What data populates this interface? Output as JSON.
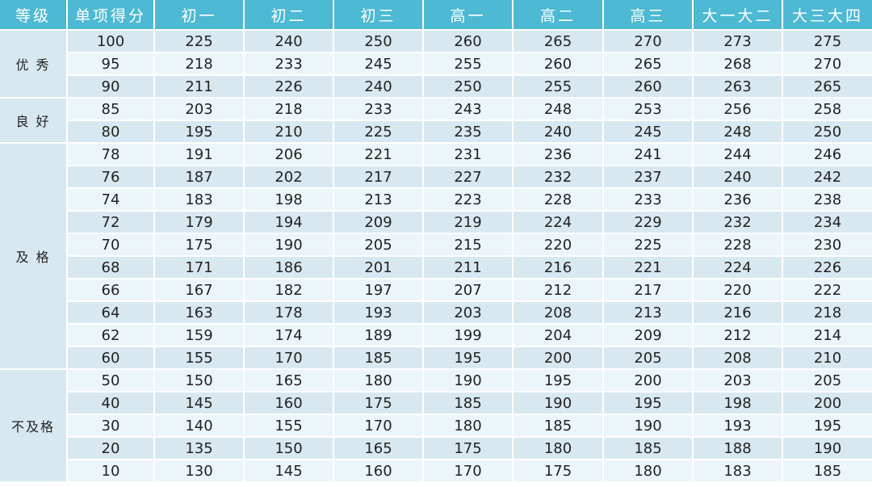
{
  "headers": [
    "等级",
    "单项得分",
    "初一",
    "初二",
    "初三",
    "高一",
    "高二",
    "高三",
    "大一大二",
    "大三大四"
  ],
  "groups": [
    {
      "grade": "优 秀",
      "rows": [
        [
          "100",
          225,
          240,
          250,
          260,
          265,
          270,
          273,
          275
        ],
        [
          "95",
          218,
          233,
          245,
          255,
          260,
          265,
          268,
          270
        ],
        [
          "90",
          211,
          226,
          240,
          250,
          255,
          260,
          263,
          265
        ]
      ]
    },
    {
      "grade": "良 好",
      "rows": [
        [
          "85",
          203,
          218,
          233,
          243,
          248,
          253,
          256,
          258
        ],
        [
          "80",
          195,
          210,
          225,
          235,
          240,
          245,
          248,
          250
        ]
      ]
    },
    {
      "grade": "及 格",
      "rows": [
        [
          "78",
          191,
          206,
          221,
          231,
          236,
          241,
          244,
          246
        ],
        [
          "76",
          187,
          202,
          217,
          227,
          232,
          237,
          240,
          242
        ],
        [
          "74",
          183,
          198,
          213,
          223,
          228,
          233,
          236,
          238
        ],
        [
          "72",
          179,
          194,
          209,
          219,
          224,
          229,
          232,
          234
        ],
        [
          "70",
          175,
          190,
          205,
          215,
          220,
          225,
          228,
          230
        ],
        [
          "68",
          171,
          186,
          201,
          211,
          216,
          221,
          224,
          226
        ],
        [
          "66",
          167,
          182,
          197,
          207,
          212,
          217,
          220,
          222
        ],
        [
          "64",
          163,
          178,
          193,
          203,
          208,
          213,
          216,
          218
        ],
        [
          "62",
          159,
          174,
          189,
          199,
          204,
          209,
          212,
          214
        ],
        [
          "60",
          155,
          170,
          185,
          195,
          200,
          205,
          208,
          210
        ]
      ]
    },
    {
      "grade": "不及格",
      "rows": [
        [
          "50",
          150,
          165,
          180,
          190,
          195,
          200,
          203,
          205
        ],
        [
          "40",
          145,
          160,
          175,
          185,
          190,
          195,
          198,
          200
        ],
        [
          "30",
          140,
          155,
          170,
          180,
          185,
          190,
          193,
          195
        ],
        [
          "20",
          135,
          150,
          165,
          175,
          180,
          185,
          188,
          190
        ],
        [
          "10",
          130,
          145,
          160,
          170,
          175,
          180,
          183,
          185
        ]
      ]
    }
  ],
  "colors": {
    "header": "#4db9d2",
    "row_dark": "#d8e8f0",
    "row_light": "#ecf5f9"
  }
}
